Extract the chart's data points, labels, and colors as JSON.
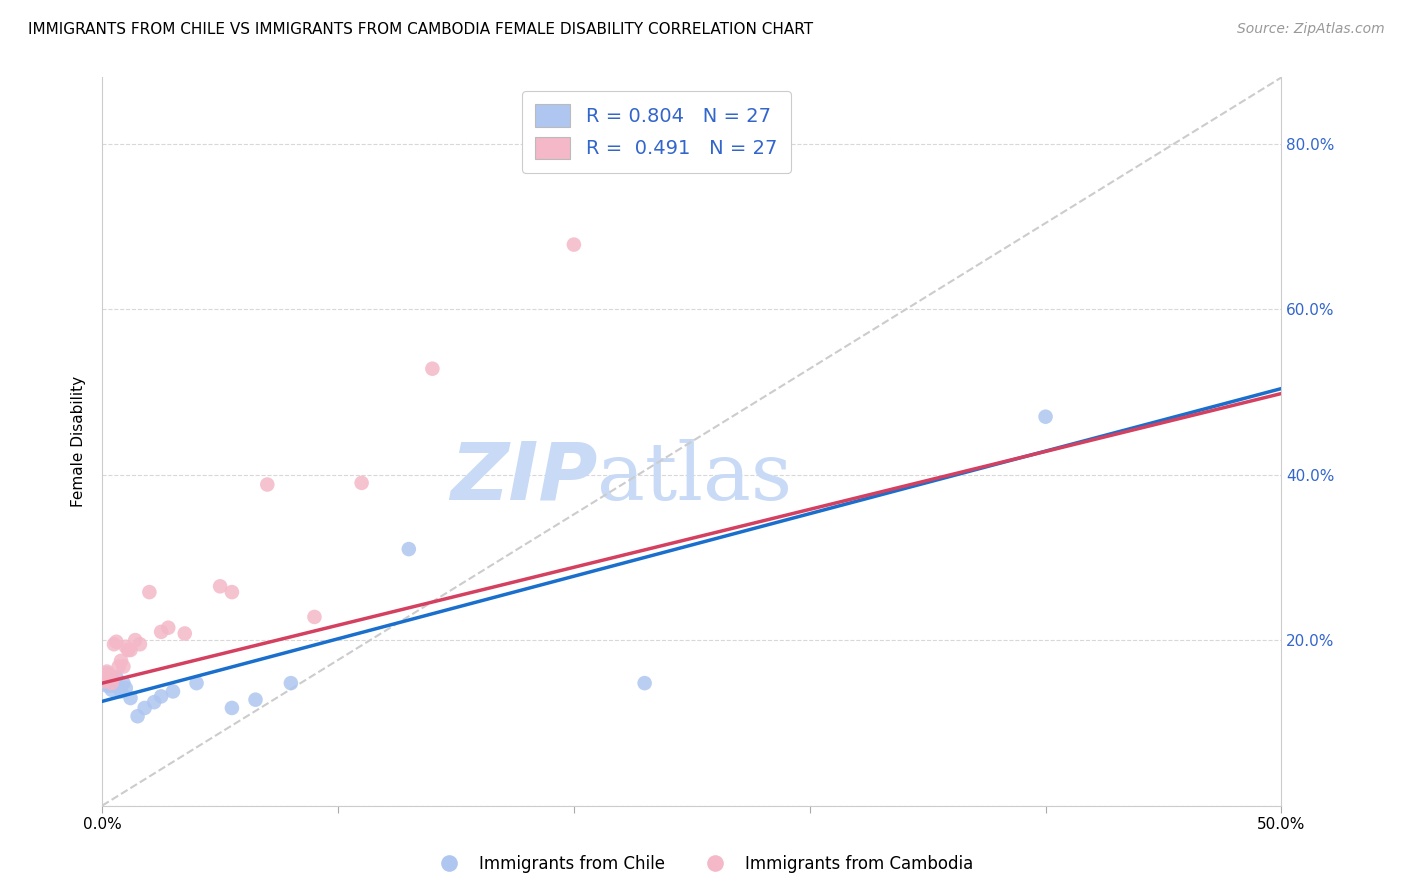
{
  "title": "IMMIGRANTS FROM CHILE VS IMMIGRANTS FROM CAMBODIA FEMALE DISABILITY CORRELATION CHART",
  "source": "Source: ZipAtlas.com",
  "ylabel_text": "Female Disability",
  "xlim": [
    0.0,
    0.5
  ],
  "ylim": [
    0.0,
    0.88
  ],
  "xticks": [
    0.0,
    0.1,
    0.2,
    0.3,
    0.4,
    0.5
  ],
  "yticks": [
    0.0,
    0.2,
    0.4,
    0.6,
    0.8
  ],
  "ytick_right_labels": [
    "",
    "20.0%",
    "40.0%",
    "60.0%",
    "80.0%"
  ],
  "xtick_labels": [
    "0.0%",
    "",
    "",
    "",
    "",
    "50.0%"
  ],
  "chile_R": 0.804,
  "chile_N": 27,
  "cambodia_R": 0.491,
  "cambodia_N": 27,
  "chile_color": "#aec6f0",
  "cambodia_color": "#f4b8c8",
  "chile_line_color": "#1a6fcc",
  "cambodia_line_color": "#d44060",
  "diagonal_color": "#cccccc",
  "legend_text_color": "#3366cc",
  "watermark_color": "#c8daf5",
  "chile_x": [
    0.001,
    0.002,
    0.002,
    0.003,
    0.003,
    0.004,
    0.005,
    0.005,
    0.006,
    0.006,
    0.007,
    0.008,
    0.009,
    0.01,
    0.012,
    0.015,
    0.018,
    0.022,
    0.025,
    0.03,
    0.04,
    0.055,
    0.065,
    0.08,
    0.13,
    0.23,
    0.4
  ],
  "chile_y": [
    0.155,
    0.16,
    0.145,
    0.15,
    0.145,
    0.14,
    0.15,
    0.145,
    0.155,
    0.148,
    0.143,
    0.138,
    0.148,
    0.142,
    0.13,
    0.108,
    0.118,
    0.125,
    0.132,
    0.138,
    0.148,
    0.118,
    0.128,
    0.148,
    0.31,
    0.148,
    0.47
  ],
  "cambodia_x": [
    0.001,
    0.002,
    0.002,
    0.003,
    0.004,
    0.005,
    0.005,
    0.006,
    0.007,
    0.008,
    0.009,
    0.01,
    0.011,
    0.012,
    0.014,
    0.016,
    0.02,
    0.025,
    0.028,
    0.035,
    0.05,
    0.055,
    0.07,
    0.09,
    0.11,
    0.14,
    0.2
  ],
  "cambodia_y": [
    0.15,
    0.158,
    0.162,
    0.158,
    0.148,
    0.155,
    0.195,
    0.198,
    0.168,
    0.175,
    0.168,
    0.192,
    0.188,
    0.188,
    0.2,
    0.195,
    0.258,
    0.21,
    0.215,
    0.208,
    0.265,
    0.258,
    0.388,
    0.228,
    0.39,
    0.528,
    0.678
  ],
  "chile_line": [
    0.126,
    0.504
  ],
  "cambodia_line": [
    0.148,
    0.498
  ]
}
